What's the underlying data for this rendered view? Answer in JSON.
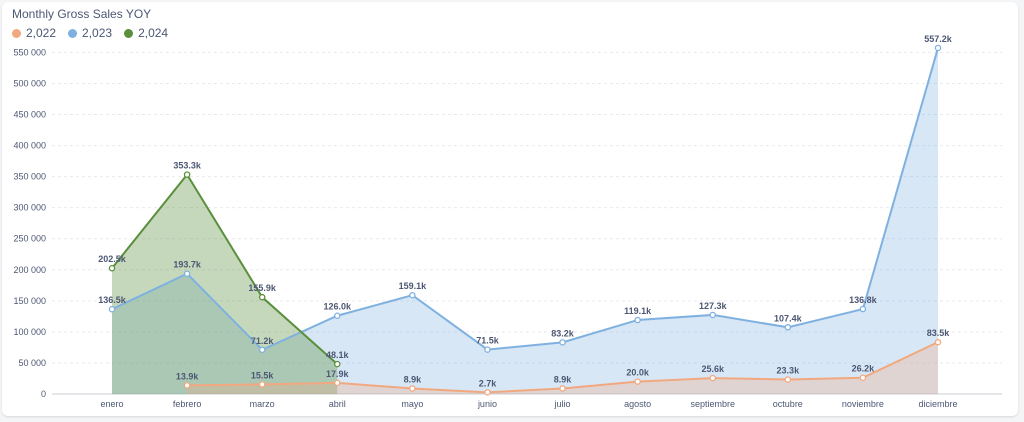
{
  "chart_data": {
    "type": "area",
    "title": "Monthly Gross Sales YOY",
    "xlabel": "",
    "ylabel": "",
    "categories": [
      "enero",
      "febrero",
      "marzo",
      "abril",
      "mayo",
      "junio",
      "julio",
      "agosto",
      "septiembre",
      "octubre",
      "noviembre",
      "diciembre"
    ],
    "ylim": [
      0,
      570000
    ],
    "yticks": [
      0,
      50000,
      100000,
      150000,
      200000,
      250000,
      300000,
      350000,
      400000,
      450000,
      500000,
      550000
    ],
    "ytick_labels": [
      "0",
      "50 000",
      "100 000",
      "150 000",
      "200 000",
      "250 000",
      "300 000",
      "350 000",
      "400 000",
      "450 000",
      "500 000",
      "550 000"
    ],
    "legend_position": "top-left",
    "grid": true,
    "series": [
      {
        "name": "2,022",
        "color": "#f2a87e",
        "values": [
          null,
          13900,
          15500,
          17900,
          8900,
          2700,
          8900,
          20000,
          25600,
          23300,
          26200,
          83500
        ],
        "labels": [
          null,
          "13.9k",
          "15.5k",
          "17.9k",
          "8.9k",
          "2.7k",
          "8.9k",
          "20.0k",
          "25.6k",
          "23.3k",
          "26.2k",
          "83.5k"
        ]
      },
      {
        "name": "2,023",
        "color": "#7fb1e0",
        "values": [
          136500,
          193700,
          71200,
          126000,
          159100,
          71500,
          83200,
          119100,
          127300,
          107400,
          136800,
          557200
        ],
        "labels": [
          "136.5k",
          "193.7k",
          "71.2k",
          "126.0k",
          "159.1k",
          "71.5k",
          "83.2k",
          "119.1k",
          "127.3k",
          "107.4k",
          "136.8k",
          "557.2k"
        ]
      },
      {
        "name": "2,024",
        "color": "#5a8f3c",
        "values": [
          202500,
          353300,
          155900,
          48100,
          null,
          null,
          null,
          null,
          null,
          null,
          null,
          null
        ],
        "labels": [
          "202.5k",
          "353.3k",
          "155.9k",
          "48.1k",
          null,
          null,
          null,
          null,
          null,
          null,
          null,
          null
        ]
      }
    ]
  }
}
